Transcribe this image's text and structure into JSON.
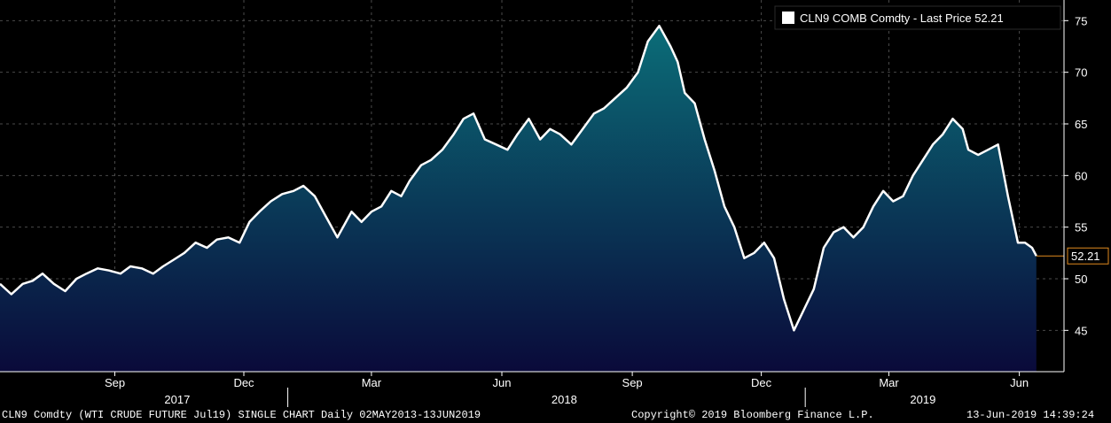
{
  "legend": {
    "label": "CLN9 COMB Comdty - Last Price 52.21",
    "swatch_color": "#ffffff"
  },
  "footer": {
    "left": "CLN9 Comdty (WTI CRUDE FUTURE  Jul19) SINGLE CHART  Daily 02MAY2013-13JUN2019",
    "center": "Copyright© 2019 Bloomberg Finance L.P.",
    "right": "13-Jun-2019 14:39:24"
  },
  "colors": {
    "background": "#000000",
    "line": "#ffffff",
    "fill_top": "#0b6d78",
    "fill_bottom": "#0a0a3a",
    "last_price_line": "#e08a1e",
    "grid": "#4a4a4a"
  },
  "chart_data": {
    "type": "area",
    "title": "",
    "xlabel": "",
    "ylabel": "",
    "ylim": [
      41,
      77
    ],
    "grid": true,
    "legend_position": "top-right",
    "y_ticks": [
      45,
      50,
      55,
      60,
      65,
      70,
      75
    ],
    "x_ticks": [
      {
        "date": "2017-09-01",
        "label": "Sep"
      },
      {
        "date": "2017-12-01",
        "label": "Dec"
      },
      {
        "date": "2018-03-01",
        "label": "Mar"
      },
      {
        "date": "2018-06-01",
        "label": "Jun"
      },
      {
        "date": "2018-09-01",
        "label": "Sep"
      },
      {
        "date": "2018-12-01",
        "label": "Dec"
      },
      {
        "date": "2019-03-01",
        "label": "Mar"
      },
      {
        "date": "2019-06-01",
        "label": "Jun"
      }
    ],
    "year_labels": [
      {
        "date": "2017-10-15",
        "label": "2017"
      },
      {
        "date": "2018-07-15",
        "label": "2018"
      },
      {
        "date": "2019-03-25",
        "label": "2019"
      }
    ],
    "year_separators": [
      "2018-01-01",
      "2019-01-01"
    ],
    "last_price": {
      "value": 52.21,
      "label": "52.21"
    },
    "series": [
      {
        "name": "CLN9 COMB Comdty - Last Price",
        "x": [
          "2017-06-12",
          "2017-06-20",
          "2017-06-28",
          "2017-07-05",
          "2017-07-12",
          "2017-07-20",
          "2017-07-28",
          "2017-08-05",
          "2017-08-12",
          "2017-08-20",
          "2017-08-28",
          "2017-09-05",
          "2017-09-12",
          "2017-09-20",
          "2017-09-28",
          "2017-10-05",
          "2017-10-12",
          "2017-10-20",
          "2017-10-28",
          "2017-11-05",
          "2017-11-12",
          "2017-11-20",
          "2017-11-28",
          "2017-12-05",
          "2017-12-12",
          "2017-12-20",
          "2017-12-28",
          "2018-01-05",
          "2018-01-12",
          "2018-01-20",
          "2018-01-28",
          "2018-02-05",
          "2018-02-09",
          "2018-02-15",
          "2018-02-22",
          "2018-03-01",
          "2018-03-08",
          "2018-03-15",
          "2018-03-22",
          "2018-03-28",
          "2018-04-05",
          "2018-04-12",
          "2018-04-20",
          "2018-04-28",
          "2018-05-05",
          "2018-05-12",
          "2018-05-20",
          "2018-05-28",
          "2018-06-05",
          "2018-06-12",
          "2018-06-20",
          "2018-06-28",
          "2018-07-05",
          "2018-07-12",
          "2018-07-20",
          "2018-07-28",
          "2018-08-05",
          "2018-08-12",
          "2018-08-20",
          "2018-08-28",
          "2018-09-05",
          "2018-09-12",
          "2018-09-20",
          "2018-09-28",
          "2018-10-03",
          "2018-10-08",
          "2018-10-15",
          "2018-10-22",
          "2018-10-29",
          "2018-11-05",
          "2018-11-12",
          "2018-11-19",
          "2018-11-26",
          "2018-12-03",
          "2018-12-10",
          "2018-12-17",
          "2018-12-24",
          "2018-12-31",
          "2019-01-07",
          "2019-01-14",
          "2019-01-21",
          "2019-01-28",
          "2019-02-04",
          "2019-02-11",
          "2019-02-18",
          "2019-02-25",
          "2019-03-04",
          "2019-03-11",
          "2019-03-18",
          "2019-03-25",
          "2019-04-01",
          "2019-04-08",
          "2019-04-15",
          "2019-04-22",
          "2019-04-26",
          "2019-05-03",
          "2019-05-10",
          "2019-05-17",
          "2019-05-24",
          "2019-05-31",
          "2019-06-05",
          "2019-06-10",
          "2019-06-13"
        ],
        "values": [
          49.5,
          48.5,
          49.5,
          49.8,
          50.5,
          49.5,
          48.8,
          50.0,
          50.5,
          51.0,
          50.8,
          50.5,
          51.2,
          51.0,
          50.5,
          51.2,
          51.8,
          52.5,
          53.5,
          53.0,
          53.8,
          54.0,
          53.5,
          55.5,
          56.5,
          57.5,
          58.2,
          58.5,
          59.0,
          58.0,
          56.0,
          54.0,
          55.0,
          56.5,
          55.5,
          56.5,
          57.0,
          58.5,
          58.0,
          59.5,
          61.0,
          61.5,
          62.5,
          64.0,
          65.5,
          66.0,
          63.5,
          63.0,
          62.5,
          64.0,
          65.5,
          63.5,
          64.5,
          64.0,
          63.0,
          64.5,
          66.0,
          66.5,
          67.5,
          68.5,
          70.0,
          73.0,
          74.5,
          72.5,
          71.0,
          68.0,
          67.0,
          63.5,
          60.5,
          57.0,
          55.0,
          52.0,
          52.5,
          53.5,
          52.0,
          48.0,
          45.0,
          47.0,
          49.0,
          53.0,
          54.5,
          55.0,
          54.0,
          55.0,
          57.0,
          58.5,
          57.5,
          58.0,
          60.0,
          61.5,
          63.0,
          64.0,
          65.5,
          64.5,
          62.5,
          62.0,
          62.5,
          63.0,
          58.0,
          53.5,
          53.5,
          53.0,
          52.21
        ]
      }
    ]
  }
}
